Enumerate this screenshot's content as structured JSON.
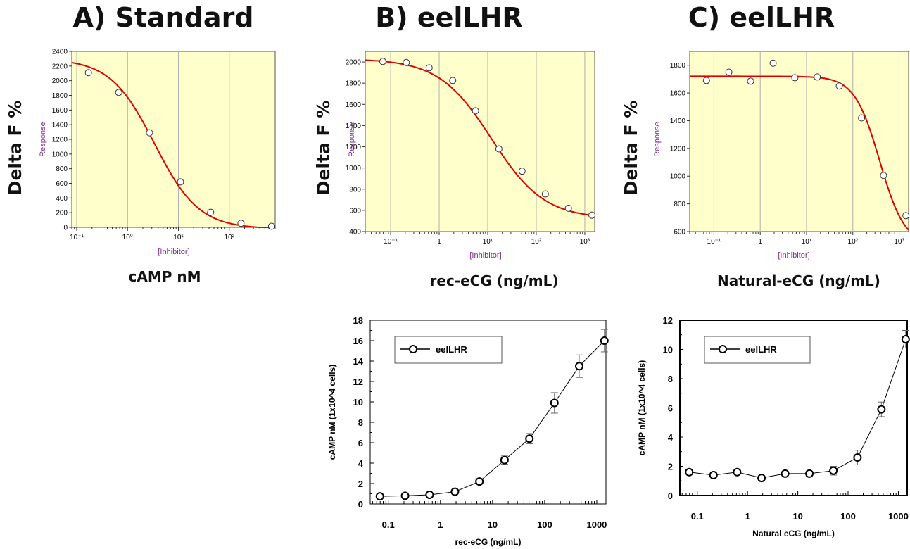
{
  "chart_data": [
    {
      "id": "A",
      "type": "scatter",
      "panel_title": "A) Standard",
      "figure_ylabel": "Delta F %",
      "figure_xlabel": "cAMP nM",
      "ylabel": "Response",
      "xlabel": "[Inhibitor]",
      "xscale": "log",
      "xlim": [
        0.08,
        800
      ],
      "ylim": [
        0,
        2400
      ],
      "yticks": [
        0,
        200,
        400,
        600,
        800,
        1000,
        1200,
        1400,
        1600,
        1800,
        2000,
        2200,
        2400
      ],
      "xticks": [
        {
          "v": 0.1,
          "l": "10⁻¹"
        },
        {
          "v": 1,
          "l": "10⁰"
        },
        {
          "v": 10,
          "l": "10¹"
        },
        {
          "v": 100,
          "l": "10²"
        }
      ],
      "xtick_labels_shown": [
        "10⁻¹",
        "1",
        "10¹",
        "10²"
      ],
      "x": [
        0.17,
        0.67,
        2.7,
        11,
        43,
        170,
        680
      ],
      "y": [
        2110,
        1840,
        1290,
        620,
        205,
        55,
        15
      ],
      "fit": {
        "top": 2300,
        "bottom": -20,
        "ic50": 3.4,
        "hill": 1.0
      },
      "background": "#ffffcc",
      "grid": true
    },
    {
      "id": "B",
      "type": "scatter",
      "panel_title": "B) eelLHR",
      "figure_ylabel": "Delta F %",
      "figure_xlabel": "rec-eCG (ng/mL)",
      "ylabel": "Response",
      "xlabel": "[Inhibitor]",
      "xscale": "log",
      "xlim": [
        0.03,
        1600
      ],
      "ylim": [
        400,
        2100
      ],
      "yticks": [
        400,
        600,
        800,
        1000,
        1200,
        1400,
        1600,
        1800,
        2000
      ],
      "xticks": [
        {
          "v": 0.1,
          "l": "10⁻¹"
        },
        {
          "v": 1,
          "l": "1"
        },
        {
          "v": 10,
          "l": "10¹"
        },
        {
          "v": 100,
          "l": "10²"
        },
        {
          "v": 1000,
          "l": "10³"
        }
      ],
      "x": [
        0.069,
        0.21,
        0.62,
        1.9,
        5.6,
        17,
        51,
        154,
        460,
        1400
      ],
      "y": [
        2005,
        1995,
        1945,
        1825,
        1540,
        1180,
        970,
        755,
        620,
        555
      ],
      "fit": {
        "top": 2030,
        "bottom": 520,
        "ic50": 12,
        "hill": 0.8
      },
      "background": "#ffffcc",
      "grid": true
    },
    {
      "id": "C",
      "type": "scatter",
      "panel_title": "C) eelLHR",
      "figure_ylabel": "Delta F %",
      "figure_xlabel": "Natural-eCG (ng/mL)",
      "ylabel": "Response",
      "xlabel": "[Inhibitor]",
      "xscale": "log",
      "xlim": [
        0.03,
        1600
      ],
      "ylim": [
        600,
        1900
      ],
      "yticks": [
        600,
        800,
        1000,
        1200,
        1400,
        1600,
        1800
      ],
      "xticks": [
        {
          "v": 0.1,
          "l": "10⁻¹"
        },
        {
          "v": 1,
          "l": "1"
        },
        {
          "v": 10,
          "l": "10¹"
        },
        {
          "v": 100,
          "l": "10²"
        },
        {
          "v": 1000,
          "l": "10³"
        }
      ],
      "x": [
        0.069,
        0.21,
        0.62,
        1.9,
        5.6,
        17,
        51,
        154,
        460,
        1400
      ],
      "y": [
        1690,
        1750,
        1685,
        1815,
        1710,
        1715,
        1650,
        1420,
        1005,
        715
      ],
      "fit": {
        "top": 1720,
        "bottom": 500,
        "ic50": 380,
        "hill": 1.6
      },
      "background": "#ffffcc",
      "grid": true
    },
    {
      "id": "D",
      "type": "line",
      "ylabel": "cAMP nM (1x10^4 cells)",
      "xlabel": "rec-eCG (ng/mL)",
      "xscale": "log",
      "xlim": [
        0.045,
        1500
      ],
      "ylim": [
        0,
        18
      ],
      "yticks": [
        0,
        2,
        4,
        6,
        8,
        10,
        12,
        14,
        16,
        18
      ],
      "xticks": [
        {
          "v": 0.1,
          "l": "0.1"
        },
        {
          "v": 1,
          "l": "1"
        },
        {
          "v": 10,
          "l": "10"
        },
        {
          "v": 100,
          "l": "100"
        },
        {
          "v": 1000,
          "l": "1000"
        }
      ],
      "legend": "eelLHR",
      "legend_position": "top-left",
      "series": [
        {
          "name": "eelLHR",
          "x": [
            0.069,
            0.21,
            0.62,
            1.9,
            5.6,
            17,
            51,
            154,
            460,
            1400
          ],
          "y": [
            0.75,
            0.8,
            0.9,
            1.2,
            2.2,
            4.3,
            6.4,
            9.9,
            13.5,
            16.0
          ],
          "err": [
            0.1,
            0.1,
            0.1,
            0.15,
            0.2,
            0.4,
            0.5,
            1.0,
            1.1,
            1.1
          ]
        }
      ]
    },
    {
      "id": "E",
      "type": "line",
      "ylabel": "cAMP nM (1x10^4 cells)",
      "xlabel": "Natural eCG (ng/mL)",
      "xscale": "log",
      "xlim": [
        0.045,
        1500
      ],
      "ylim": [
        0,
        12
      ],
      "yticks": [
        0,
        2,
        4,
        6,
        8,
        10,
        12
      ],
      "xticks": [
        {
          "v": 0.1,
          "l": "0.1"
        },
        {
          "v": 1,
          "l": "1"
        },
        {
          "v": 10,
          "l": "10"
        },
        {
          "v": 100,
          "l": "100"
        },
        {
          "v": 1000,
          "l": "1000"
        }
      ],
      "legend": "eelLHR",
      "legend_position": "top-left",
      "series": [
        {
          "name": "eelLHR",
          "x": [
            0.069,
            0.21,
            0.62,
            1.9,
            5.6,
            17,
            51,
            154,
            460,
            1400
          ],
          "y": [
            1.6,
            1.4,
            1.6,
            1.2,
            1.5,
            1.5,
            1.7,
            2.6,
            5.9,
            10.7
          ],
          "err": [
            0.1,
            0.1,
            0.1,
            0.1,
            0.1,
            0.15,
            0.3,
            0.5,
            0.5,
            0.6
          ]
        }
      ]
    }
  ]
}
